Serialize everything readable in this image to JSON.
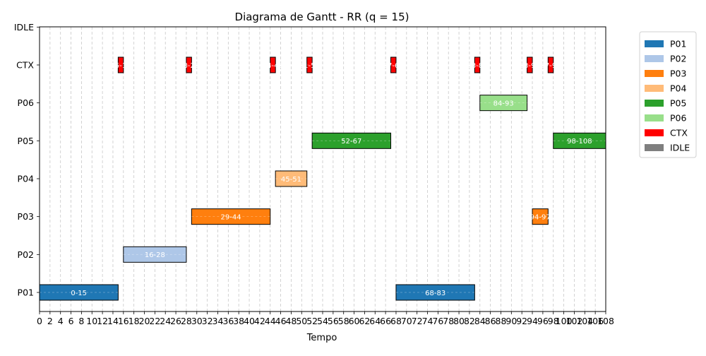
{
  "chart_data": {
    "type": "gantt",
    "title": "Diagrama de Gantt - RR (q = 15)",
    "xlabel": "Tempo",
    "ylabel": "",
    "xlim": [
      0,
      108
    ],
    "x_ticks": [
      0,
      2,
      4,
      6,
      8,
      10,
      12,
      14,
      16,
      18,
      20,
      22,
      24,
      26,
      28,
      30,
      32,
      34,
      36,
      38,
      40,
      42,
      44,
      46,
      48,
      50,
      52,
      54,
      56,
      58,
      60,
      62,
      64,
      66,
      68,
      70,
      72,
      74,
      76,
      78,
      80,
      82,
      84,
      86,
      88,
      90,
      92,
      94,
      96,
      98,
      100,
      102,
      104,
      106,
      108
    ],
    "categories": [
      "P01",
      "P02",
      "P03",
      "P04",
      "P05",
      "P06",
      "CTX",
      "IDLE"
    ],
    "grid": "x-dashed",
    "legend_position": "right-outside",
    "legend": [
      {
        "name": "P01",
        "color": "#1f77b4"
      },
      {
        "name": "P02",
        "color": "#aec7e8"
      },
      {
        "name": "P03",
        "color": "#ff7f0e"
      },
      {
        "name": "P04",
        "color": "#ffbb78"
      },
      {
        "name": "P05",
        "color": "#2ca02c"
      },
      {
        "name": "P06",
        "color": "#98df8a"
      },
      {
        "name": "CTX",
        "color": "#ff0000"
      },
      {
        "name": "IDLE",
        "color": "#7f7f7f"
      }
    ],
    "tasks": [
      {
        "row": "P01",
        "start": 0,
        "end": 15,
        "label": "0-15"
      },
      {
        "row": "P02",
        "start": 16,
        "end": 28,
        "label": "16-28"
      },
      {
        "row": "P03",
        "start": 29,
        "end": 44,
        "label": "29-44"
      },
      {
        "row": "P04",
        "start": 45,
        "end": 51,
        "label": "45-51"
      },
      {
        "row": "P05",
        "start": 52,
        "end": 67,
        "label": "52-67"
      },
      {
        "row": "P01",
        "start": 68,
        "end": 83,
        "label": "68-83"
      },
      {
        "row": "P06",
        "start": 84,
        "end": 93,
        "label": "84-93"
      },
      {
        "row": "P03",
        "start": 94,
        "end": 97,
        "label": "94-97"
      },
      {
        "row": "P05",
        "start": 98,
        "end": 108,
        "label": "98-108"
      },
      {
        "row": "CTX",
        "start": 15,
        "end": 16,
        "label": "15-16"
      },
      {
        "row": "CTX",
        "start": 28,
        "end": 29,
        "label": "28-29"
      },
      {
        "row": "CTX",
        "start": 44,
        "end": 45,
        "label": "44-45"
      },
      {
        "row": "CTX",
        "start": 51,
        "end": 52,
        "label": "51-52"
      },
      {
        "row": "CTX",
        "start": 67,
        "end": 68,
        "label": "67-68"
      },
      {
        "row": "CTX",
        "start": 83,
        "end": 84,
        "label": "83-84"
      },
      {
        "row": "CTX",
        "start": 93,
        "end": 94,
        "label": "93-94"
      },
      {
        "row": "CTX",
        "start": 97,
        "end": 98,
        "label": "97-98"
      }
    ]
  }
}
